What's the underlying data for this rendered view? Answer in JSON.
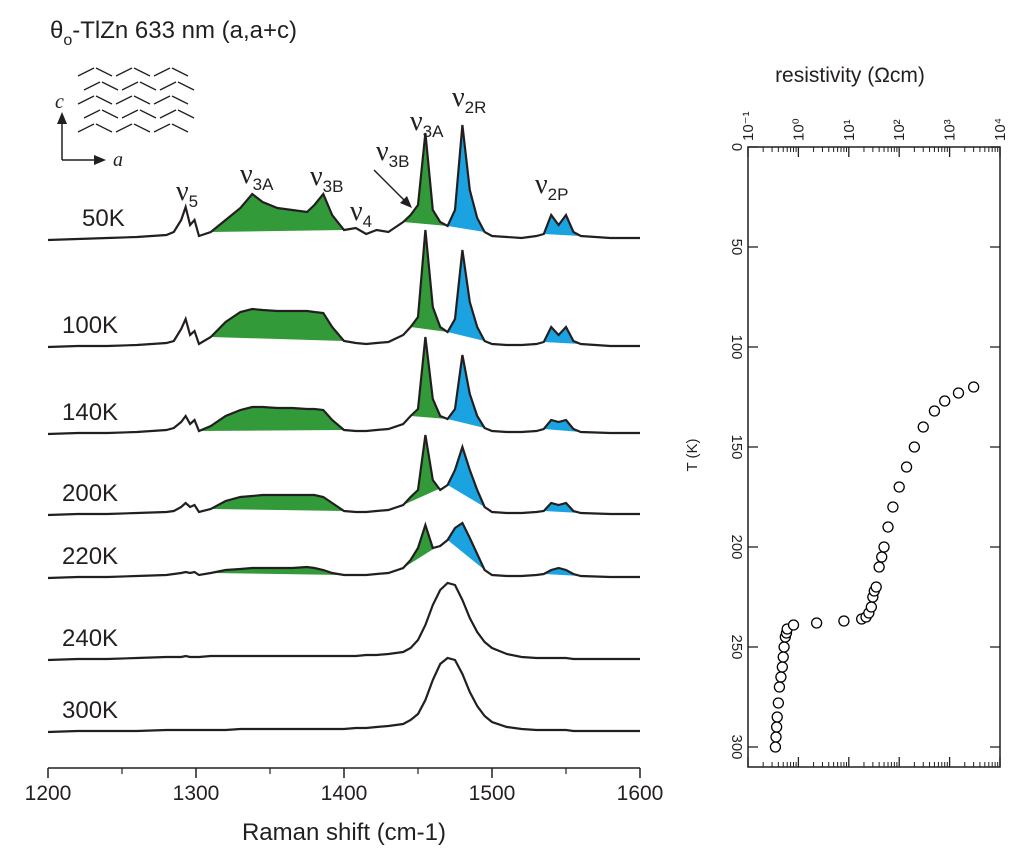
{
  "chart_data": [
    {
      "type": "line",
      "title": {
        "pre": "θ",
        "sub": "o",
        "post": "-TlZn 633 nm (a,a+c)"
      },
      "xlabel": "Raman shift (cm-1)",
      "inset_labels": [
        "c",
        "a"
      ],
      "xlim": [
        1200,
        1600
      ],
      "xticks": [
        1200,
        1300,
        1400,
        1500,
        1600
      ],
      "xminorticks": [
        1250,
        1350,
        1450,
        1550
      ],
      "x": [
        1200,
        1220,
        1240,
        1260,
        1280,
        1285,
        1290,
        1293,
        1296,
        1299,
        1302,
        1310,
        1320,
        1330,
        1338,
        1345,
        1355,
        1365,
        1375,
        1380,
        1386,
        1392,
        1400,
        1408,
        1415,
        1422,
        1430,
        1440,
        1445,
        1450,
        1455,
        1460,
        1465,
        1470,
        1475,
        1480,
        1485,
        1490,
        1495,
        1500,
        1510,
        1520,
        1530,
        1535,
        1540,
        1545,
        1550,
        1555,
        1560,
        1580,
        1600
      ],
      "series": [
        {
          "name": "50K",
          "color": "#231f20",
          "values": [
            0,
            1,
            2,
            3,
            5,
            8,
            20,
            33,
            15,
            20,
            4,
            8,
            20,
            32,
            46,
            38,
            32,
            30,
            28,
            35,
            46,
            25,
            10,
            12,
            6,
            10,
            8,
            18,
            25,
            35,
            107,
            30,
            18,
            14,
            30,
            115,
            50,
            22,
            8,
            4,
            3,
            2,
            4,
            6,
            25,
            15,
            25,
            8,
            4,
            2,
            2
          ],
          "fills": [
            {
              "from": 1310,
              "to": 1400,
              "color": "#339a3a"
            },
            {
              "from": 1440,
              "to": 1470,
              "color": "#339a3a"
            },
            {
              "from": 1470,
              "to": 1495,
              "color": "#1aa3e0"
            },
            {
              "from": 1535,
              "to": 1560,
              "color": "#1aa3e0"
            }
          ]
        },
        {
          "name": "100K",
          "color": "#231f20",
          "values": [
            0,
            1,
            1,
            2,
            4,
            6,
            18,
            28,
            12,
            16,
            3,
            10,
            25,
            35,
            38,
            37,
            36,
            36,
            36,
            35,
            34,
            20,
            6,
            4,
            3,
            4,
            5,
            12,
            20,
            30,
            117,
            40,
            20,
            15,
            28,
            97,
            45,
            20,
            6,
            3,
            2,
            2,
            3,
            5,
            20,
            12,
            20,
            6,
            3,
            1,
            1
          ],
          "fills": [
            {
              "from": 1310,
              "to": 1400,
              "color": "#339a3a"
            },
            {
              "from": 1445,
              "to": 1470,
              "color": "#339a3a"
            },
            {
              "from": 1470,
              "to": 1495,
              "color": "#1aa3e0"
            },
            {
              "from": 1535,
              "to": 1560,
              "color": "#1aa3e0"
            }
          ]
        },
        {
          "name": "140K",
          "color": "#231f20",
          "values": [
            0,
            1,
            1,
            2,
            4,
            6,
            12,
            18,
            10,
            14,
            3,
            8,
            18,
            24,
            27,
            27,
            26,
            26,
            25,
            25,
            24,
            14,
            4,
            3,
            3,
            4,
            5,
            10,
            18,
            25,
            97,
            35,
            18,
            15,
            25,
            79,
            40,
            18,
            6,
            3,
            2,
            2,
            3,
            5,
            14,
            12,
            14,
            5,
            2,
            1,
            1
          ],
          "fills": [
            {
              "from": 1302,
              "to": 1400,
              "color": "#339a3a"
            },
            {
              "from": 1445,
              "to": 1470,
              "color": "#339a3a"
            },
            {
              "from": 1470,
              "to": 1495,
              "color": "#1aa3e0"
            },
            {
              "from": 1535,
              "to": 1560,
              "color": "#1aa3e0"
            }
          ]
        },
        {
          "name": "200K",
          "color": "#231f20",
          "values": [
            0,
            1,
            1,
            2,
            3,
            4,
            8,
            12,
            8,
            10,
            3,
            6,
            14,
            18,
            19,
            20,
            20,
            20,
            20,
            20,
            18,
            12,
            4,
            3,
            3,
            4,
            5,
            10,
            18,
            25,
            80,
            35,
            25,
            30,
            45,
            68,
            45,
            25,
            8,
            3,
            2,
            2,
            3,
            4,
            12,
            10,
            12,
            4,
            2,
            1,
            1
          ],
          "fills": [
            {
              "from": 1310,
              "to": 1400,
              "color": "#339a3a"
            },
            {
              "from": 1440,
              "to": 1470,
              "color": "#339a3a"
            },
            {
              "from": 1470,
              "to": 1495,
              "color": "#1aa3e0"
            },
            {
              "from": 1535,
              "to": 1560,
              "color": "#1aa3e0"
            }
          ]
        },
        {
          "name": "220K",
          "color": "#231f20",
          "values": [
            0,
            1,
            1,
            2,
            3,
            4,
            5,
            6,
            5,
            6,
            3,
            5,
            8,
            9,
            10,
            10,
            10,
            10,
            11,
            10,
            8,
            5,
            3,
            3,
            3,
            4,
            5,
            10,
            18,
            30,
            53,
            30,
            32,
            38,
            50,
            55,
            40,
            24,
            8,
            3,
            2,
            2,
            3,
            4,
            8,
            10,
            8,
            4,
            2,
            1,
            1
          ],
          "fills": [
            {
              "from": 1310,
              "to": 1400,
              "color": "#339a3a"
            },
            {
              "from": 1440,
              "to": 1470,
              "color": "#339a3a"
            },
            {
              "from": 1470,
              "to": 1495,
              "color": "#1aa3e0"
            },
            {
              "from": 1535,
              "to": 1560,
              "color": "#1aa3e0"
            }
          ]
        },
        {
          "name": "240K",
          "color": "#231f20",
          "values": [
            0,
            1,
            1,
            2,
            3,
            3,
            3,
            4,
            3,
            3,
            3,
            4,
            4,
            4,
            4,
            4,
            4,
            4,
            4,
            4,
            4,
            4,
            4,
            4,
            5,
            5,
            6,
            8,
            12,
            20,
            35,
            55,
            70,
            77,
            75,
            60,
            42,
            28,
            18,
            12,
            6,
            3,
            2,
            2,
            2,
            2,
            2,
            1,
            1,
            1,
            1
          ],
          "fills": []
        },
        {
          "name": "300K",
          "color": "#231f20",
          "values": [
            0,
            1,
            1,
            1,
            2,
            2,
            2,
            2,
            2,
            2,
            2,
            2,
            2,
            3,
            3,
            3,
            3,
            3,
            3,
            3,
            3,
            3,
            3,
            4,
            4,
            5,
            6,
            8,
            12,
            18,
            32,
            52,
            68,
            74,
            72,
            58,
            40,
            26,
            16,
            10,
            5,
            3,
            2,
            2,
            2,
            2,
            2,
            1,
            1,
            1,
            1
          ],
          "fills": []
        }
      ],
      "annotations": [
        {
          "text": "ν",
          "sub": "5"
        },
        {
          "text": "ν",
          "sub": "3A"
        },
        {
          "text": "ν",
          "sub": "3B"
        },
        {
          "text": "ν",
          "sub": "4"
        },
        {
          "text": "ν",
          "sub": "3B"
        },
        {
          "text": "ν",
          "sub": "3A"
        },
        {
          "text": "ν",
          "sub": "2R"
        },
        {
          "text": "ν",
          "sub": "2P"
        }
      ]
    },
    {
      "type": "scatter",
      "xlabel": "resistivity (Ωcm)",
      "ylabel": "T (K)",
      "xscale": "log",
      "xlim": [
        0.1,
        10000
      ],
      "xticks": [
        {
          "value": 0.1,
          "label": "10⁻¹"
        },
        {
          "value": 1,
          "label": "10⁰"
        },
        {
          "value": 10,
          "label": "10¹"
        },
        {
          "value": 100,
          "label": "10²"
        },
        {
          "value": 1000,
          "label": "10³"
        },
        {
          "value": 10000,
          "label": "10⁴"
        }
      ],
      "ylim": [
        0,
        310
      ],
      "y_inverted": true,
      "yticks": [
        0,
        50,
        100,
        150,
        200,
        250,
        300
      ],
      "color": "#000000",
      "x": [
        0.35,
        0.36,
        0.37,
        0.38,
        0.4,
        0.42,
        0.45,
        0.48,
        0.5,
        0.52,
        0.55,
        0.58,
        0.6,
        0.8,
        2.3,
        8,
        18,
        22,
        25,
        28,
        30,
        32,
        35,
        40,
        45,
        50,
        60,
        75,
        100,
        140,
        200,
        300,
        500,
        800,
        1500,
        3000
      ],
      "y": [
        300,
        295,
        290,
        285,
        278,
        270,
        265,
        260,
        255,
        250,
        245,
        243,
        241,
        239,
        238,
        237,
        236,
        235,
        233,
        230,
        225,
        222,
        220,
        210,
        205,
        200,
        190,
        180,
        170,
        160,
        150,
        140,
        132,
        127,
        123,
        120
      ]
    }
  ]
}
